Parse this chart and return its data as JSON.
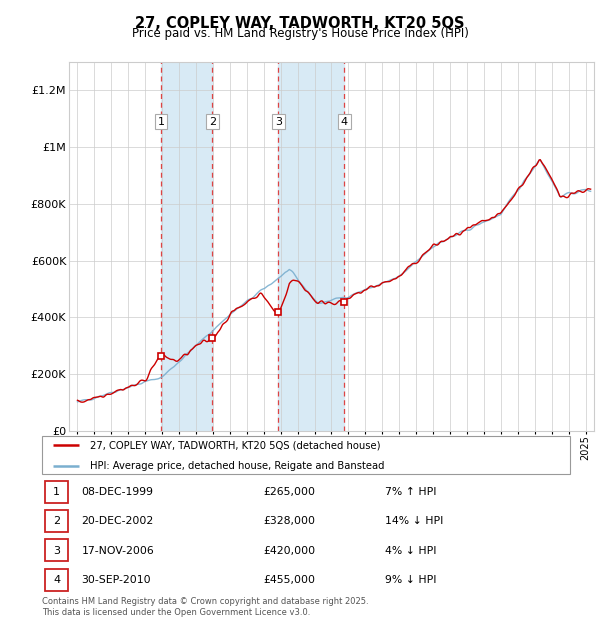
{
  "title": "27, COPLEY WAY, TADWORTH, KT20 5QS",
  "subtitle": "Price paid vs. HM Land Registry's House Price Index (HPI)",
  "footer": "Contains HM Land Registry data © Crown copyright and database right 2025.\nThis data is licensed under the Open Government Licence v3.0.",
  "legend_red": "27, COPLEY WAY, TADWORTH, KT20 5QS (detached house)",
  "legend_blue": "HPI: Average price, detached house, Reigate and Banstead",
  "sales": [
    {
      "num": 1,
      "date": "08-DEC-1999",
      "price": 265000,
      "pct": "7%",
      "dir": "↑",
      "year": 1999.93
    },
    {
      "num": 2,
      "date": "20-DEC-2002",
      "price": 328000,
      "pct": "14%",
      "dir": "↓",
      "year": 2002.96
    },
    {
      "num": 3,
      "date": "17-NOV-2006",
      "price": 420000,
      "pct": "4%",
      "dir": "↓",
      "year": 2006.87
    },
    {
      "num": 4,
      "date": "30-SEP-2010",
      "price": 455000,
      "pct": "9%",
      "dir": "↓",
      "year": 2010.75
    }
  ],
  "ylim": [
    0,
    1300000
  ],
  "xlim": [
    1994.5,
    2025.5
  ],
  "yticks": [
    0,
    200000,
    400000,
    600000,
    800000,
    1000000,
    1200000
  ],
  "ytick_labels": [
    "£0",
    "£200K",
    "£400K",
    "£600K",
    "£800K",
    "£1M",
    "£1.2M"
  ],
  "xticks": [
    1995,
    1996,
    1997,
    1998,
    1999,
    2000,
    2001,
    2002,
    2003,
    2004,
    2005,
    2006,
    2007,
    2008,
    2009,
    2010,
    2011,
    2012,
    2013,
    2014,
    2015,
    2016,
    2017,
    2018,
    2019,
    2020,
    2021,
    2022,
    2023,
    2024,
    2025
  ],
  "red_color": "#cc0000",
  "blue_color": "#7aafcf",
  "shade_color": "#d8eaf5",
  "grid_color": "#cccccc",
  "bg_color": "#ffffff",
  "dashed_color": "#dd4444"
}
